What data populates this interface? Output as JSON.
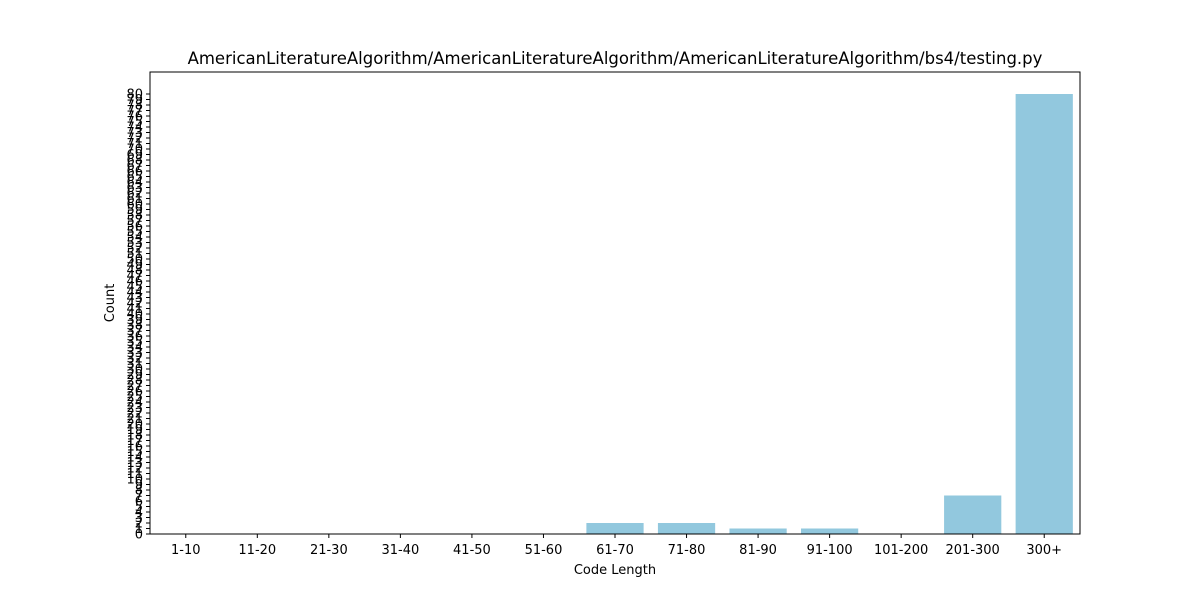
{
  "chart_data": {
    "type": "bar",
    "title": "AmericanLiteratureAlgorithm/AmericanLiteratureAlgorithm/AmericanLiteratureAlgorithm/bs4/testing.py",
    "xlabel": "Code Length",
    "ylabel": "Count",
    "categories": [
      "1-10",
      "11-20",
      "21-30",
      "31-40",
      "41-50",
      "51-60",
      "61-70",
      "71-80",
      "81-90",
      "91-100",
      "101-200",
      "201-300",
      "300+"
    ],
    "values": [
      0,
      0,
      0,
      0,
      0,
      0,
      2,
      2,
      1,
      1,
      0,
      7,
      80
    ],
    "ylim": [
      0,
      84
    ],
    "yticks": [
      0,
      1,
      2,
      3,
      4,
      5,
      6,
      7,
      8,
      9,
      10,
      11,
      12,
      13,
      14,
      15,
      16,
      17,
      18,
      19,
      20,
      21,
      22,
      23,
      24,
      25,
      26,
      27,
      28,
      29,
      30,
      31,
      32,
      33,
      34,
      35,
      36,
      37,
      38,
      39,
      40,
      41,
      42,
      43,
      44,
      45,
      46,
      47,
      48,
      49,
      50,
      51,
      52,
      53,
      54,
      55,
      56,
      57,
      58,
      59,
      60,
      61,
      62,
      63,
      64,
      65,
      66,
      67,
      68,
      69,
      70,
      71,
      72,
      73,
      74,
      75,
      76,
      77,
      78,
      79,
      80
    ],
    "bar_color": "#92c8de",
    "grid": false,
    "legend": "none"
  }
}
